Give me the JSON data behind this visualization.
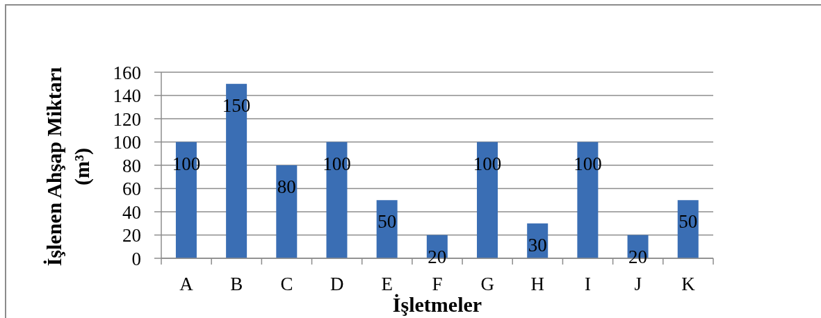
{
  "chart_data": {
    "type": "bar",
    "categories": [
      "A",
      "B",
      "C",
      "D",
      "E",
      "F",
      "G",
      "H",
      "I",
      "J",
      "K"
    ],
    "values": [
      100,
      150,
      80,
      100,
      50,
      20,
      100,
      30,
      100,
      20,
      50
    ],
    "color": "#3a6eb4",
    "xlabel": "İşletmeler",
    "ylabel": "İşlenen Ahşap Miktarı (m³)",
    "ylim": [
      0,
      160
    ],
    "yticks": [
      0,
      20,
      40,
      60,
      80,
      100,
      120,
      140,
      160
    ],
    "grid": "y",
    "data_labels": true
  }
}
